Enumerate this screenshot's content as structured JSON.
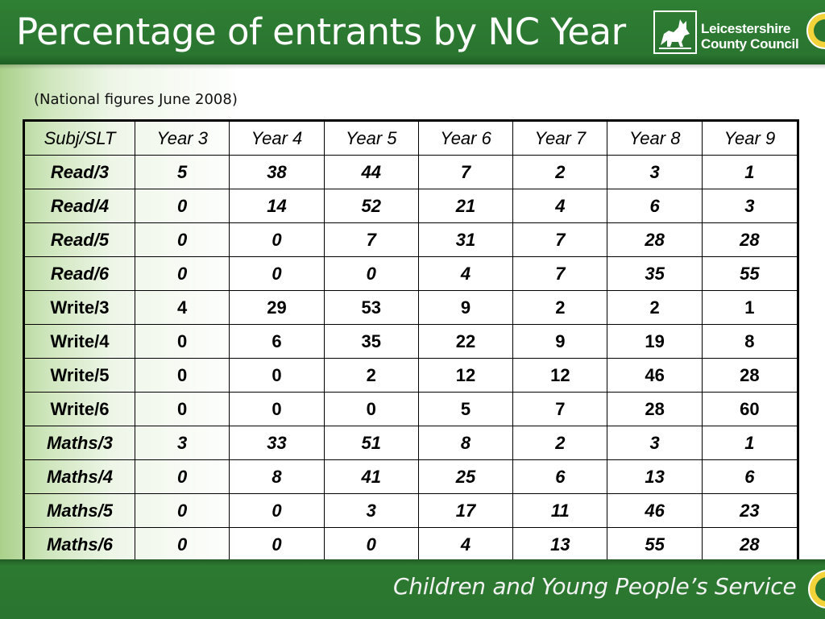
{
  "header": {
    "title": "Percentage of entrants by NC Year",
    "logo_line1": "Leicestershire",
    "logo_line2": "County Council"
  },
  "subtitle": "(National figures June 2008)",
  "table": {
    "headers": [
      "Subj/SLT",
      "Year 3",
      "Year 4",
      "Year 5",
      "Year 6",
      "Year 7",
      "Year 8",
      "Year 9"
    ],
    "rows": [
      {
        "label": "Read/3",
        "italic": true,
        "values": [
          "5",
          "38",
          "44",
          "7",
          "2",
          "3",
          "1"
        ]
      },
      {
        "label": "Read/4",
        "italic": true,
        "values": [
          "0",
          "14",
          "52",
          "21",
          "4",
          "6",
          "3"
        ]
      },
      {
        "label": "Read/5",
        "italic": true,
        "values": [
          "0",
          "0",
          "7",
          "31",
          "7",
          "28",
          "28"
        ]
      },
      {
        "label": "Read/6",
        "italic": true,
        "values": [
          "0",
          "0",
          "0",
          "4",
          "7",
          "35",
          "55"
        ]
      },
      {
        "label": "Write/3",
        "italic": false,
        "values": [
          "4",
          "29",
          "53",
          "9",
          "2",
          "2",
          "1"
        ]
      },
      {
        "label": "Write/4",
        "italic": false,
        "values": [
          "0",
          "6",
          "35",
          "22",
          "9",
          "19",
          "8"
        ]
      },
      {
        "label": "Write/5",
        "italic": false,
        "values": [
          "0",
          "0",
          "2",
          "12",
          "12",
          "46",
          "28"
        ]
      },
      {
        "label": "Write/6",
        "italic": false,
        "values": [
          "0",
          "0",
          "0",
          "5",
          "7",
          "28",
          "60"
        ]
      },
      {
        "label": "Maths/3",
        "italic": true,
        "values": [
          "3",
          "33",
          "51",
          "8",
          "2",
          "3",
          "1"
        ]
      },
      {
        "label": "Maths/4",
        "italic": true,
        "values": [
          "0",
          "8",
          "41",
          "25",
          "6",
          "13",
          "6"
        ]
      },
      {
        "label": "Maths/5",
        "italic": true,
        "values": [
          "0",
          "0",
          "3",
          "17",
          "11",
          "46",
          "23"
        ]
      },
      {
        "label": "Maths/6",
        "italic": true,
        "values": [
          "0",
          "0",
          "0",
          "4",
          "13",
          "55",
          "28"
        ]
      }
    ]
  },
  "footer": {
    "service": "Children and Young People’s Service"
  },
  "colors": {
    "brand_green": "#2a7530",
    "side_gradient_green": "#a9d08a",
    "text_white": "#ffffff"
  },
  "icons": {
    "logo": "fox-emblem-icon",
    "seal": "round-seal-icon"
  }
}
